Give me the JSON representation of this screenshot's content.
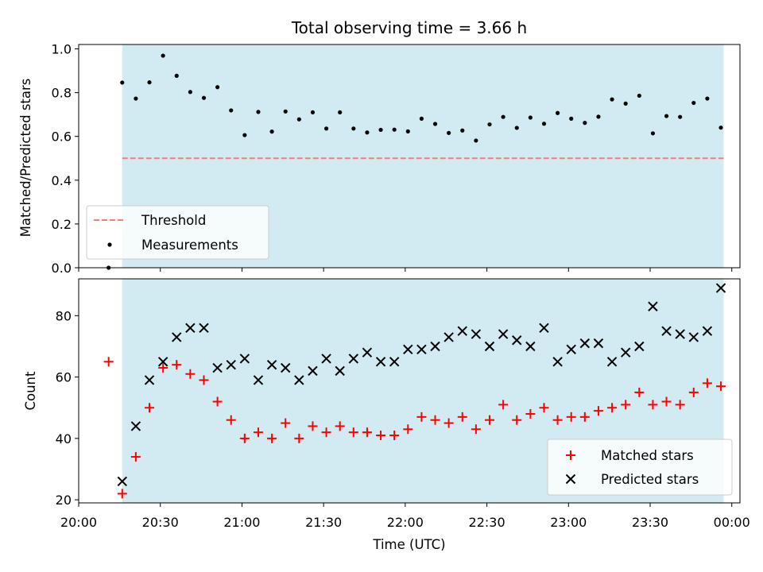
{
  "figure": {
    "title": "Total observing time = 3.66 h"
  },
  "colors": {
    "shade": "#add8e6",
    "threshold": "#f08080",
    "measurement": "#000000",
    "matched": "#ff0000",
    "predicted": "#000000"
  },
  "chart_data": [
    {
      "type": "scatter",
      "name": "ratio-panel",
      "ylabel": "Matched/Predicted stars",
      "xlabel": "",
      "xlim": [
        "20:00",
        "00:03"
      ],
      "ylim": [
        0,
        1.02
      ],
      "yticks": [
        0.0,
        0.2,
        0.4,
        0.6,
        0.8,
        1.0
      ],
      "ytick_labels": [
        "0.0",
        "0.2",
        "0.4",
        "0.6",
        "0.8",
        "1.0"
      ],
      "shaded_span": [
        "20:16",
        "23:57"
      ],
      "threshold": {
        "name": "Threshold",
        "value": 0.5,
        "x": [
          "20:16",
          "23:57"
        ]
      },
      "legend_position": "lower-left",
      "series": [
        {
          "name": "Measurements",
          "x": [
            "20:11",
            "20:16",
            "20:21",
            "20:26",
            "20:31",
            "20:36",
            "20:41",
            "20:46",
            "20:51",
            "20:56",
            "21:01",
            "21:06",
            "21:11",
            "21:16",
            "21:21",
            "21:26",
            "21:31",
            "21:36",
            "21:41",
            "21:46",
            "21:51",
            "21:56",
            "22:01",
            "22:06",
            "22:11",
            "22:16",
            "22:21",
            "22:26",
            "22:31",
            "22:36",
            "22:41",
            "22:46",
            "22:51",
            "22:56",
            "23:01",
            "23:06",
            "23:11",
            "23:16",
            "23:21",
            "23:26",
            "23:31",
            "23:36",
            "23:41",
            "23:46",
            "23:51",
            "23:56"
          ],
          "y": [
            0.0,
            0.846,
            0.773,
            0.847,
            0.969,
            0.877,
            0.803,
            0.776,
            0.825,
            0.719,
            0.606,
            0.712,
            0.622,
            0.714,
            0.678,
            0.71,
            0.636,
            0.71,
            0.636,
            0.618,
            0.63,
            0.631,
            0.623,
            0.681,
            0.657,
            0.616,
            0.627,
            0.581,
            0.655,
            0.689,
            0.639,
            0.686,
            0.658,
            0.707,
            0.681,
            0.662,
            0.69,
            0.769,
            0.75,
            0.786,
            0.614,
            0.693,
            0.689,
            0.753,
            0.773,
            0.64
          ]
        }
      ]
    },
    {
      "type": "scatter",
      "name": "count-panel",
      "ylabel": "Count",
      "xlabel": "Time (UTC)",
      "xlim": [
        "20:00",
        "00:03"
      ],
      "ylim": [
        19,
        92
      ],
      "yticks": [
        20,
        40,
        60,
        80
      ],
      "ytick_labels": [
        "20",
        "40",
        "60",
        "80"
      ],
      "xticks": [
        "20:00",
        "20:30",
        "21:00",
        "21:30",
        "22:00",
        "22:30",
        "23:00",
        "23:30",
        "00:00"
      ],
      "xtick_labels": [
        "20:00",
        "20:30",
        "21:00",
        "21:30",
        "22:00",
        "22:30",
        "23:00",
        "23:30",
        "00:00"
      ],
      "shaded_span": [
        "20:16",
        "23:57"
      ],
      "legend_position": "lower-right",
      "series": [
        {
          "name": "Matched stars",
          "marker": "plus",
          "x": [
            "20:11",
            "20:16",
            "20:21",
            "20:26",
            "20:31",
            "20:36",
            "20:41",
            "20:46",
            "20:51",
            "20:56",
            "21:01",
            "21:06",
            "21:11",
            "21:16",
            "21:21",
            "21:26",
            "21:31",
            "21:36",
            "21:41",
            "21:46",
            "21:51",
            "21:56",
            "22:01",
            "22:06",
            "22:11",
            "22:16",
            "22:21",
            "22:26",
            "22:31",
            "22:36",
            "22:41",
            "22:46",
            "22:51",
            "22:56",
            "23:01",
            "23:06",
            "23:11",
            "23:16",
            "23:21",
            "23:26",
            "23:31",
            "23:36",
            "23:41",
            "23:46",
            "23:51",
            "23:56"
          ],
          "y": [
            65,
            22,
            34,
            50,
            63,
            64,
            61,
            59,
            52,
            46,
            40,
            42,
            40,
            45,
            40,
            44,
            42,
            44,
            42,
            42,
            41,
            41,
            43,
            47,
            46,
            45,
            47,
            43,
            46,
            51,
            46,
            48,
            50,
            46,
            47,
            47,
            49,
            50,
            51,
            55,
            51,
            52,
            51,
            55,
            58,
            57
          ]
        },
        {
          "name": "Predicted stars",
          "marker": "x",
          "x": [
            "20:16",
            "20:21",
            "20:26",
            "20:31",
            "20:36",
            "20:41",
            "20:46",
            "20:51",
            "20:56",
            "21:01",
            "21:06",
            "21:11",
            "21:16",
            "21:21",
            "21:26",
            "21:31",
            "21:36",
            "21:41",
            "21:46",
            "21:51",
            "21:56",
            "22:01",
            "22:06",
            "22:11",
            "22:16",
            "22:21",
            "22:26",
            "22:31",
            "22:36",
            "22:41",
            "22:46",
            "22:51",
            "22:56",
            "23:01",
            "23:06",
            "23:11",
            "23:16",
            "23:21",
            "23:26",
            "23:31",
            "23:36",
            "23:41",
            "23:46",
            "23:51",
            "23:56"
          ],
          "y": [
            26,
            44,
            59,
            65,
            73,
            76,
            76,
            63,
            64,
            66,
            59,
            64,
            63,
            59,
            62,
            66,
            62,
            66,
            68,
            65,
            65,
            69,
            69,
            70,
            73,
            75,
            74,
            70,
            74,
            72,
            70,
            76,
            65,
            69,
            71,
            71,
            65,
            68,
            70,
            83,
            75,
            74,
            73,
            75,
            89
          ]
        }
      ]
    }
  ]
}
